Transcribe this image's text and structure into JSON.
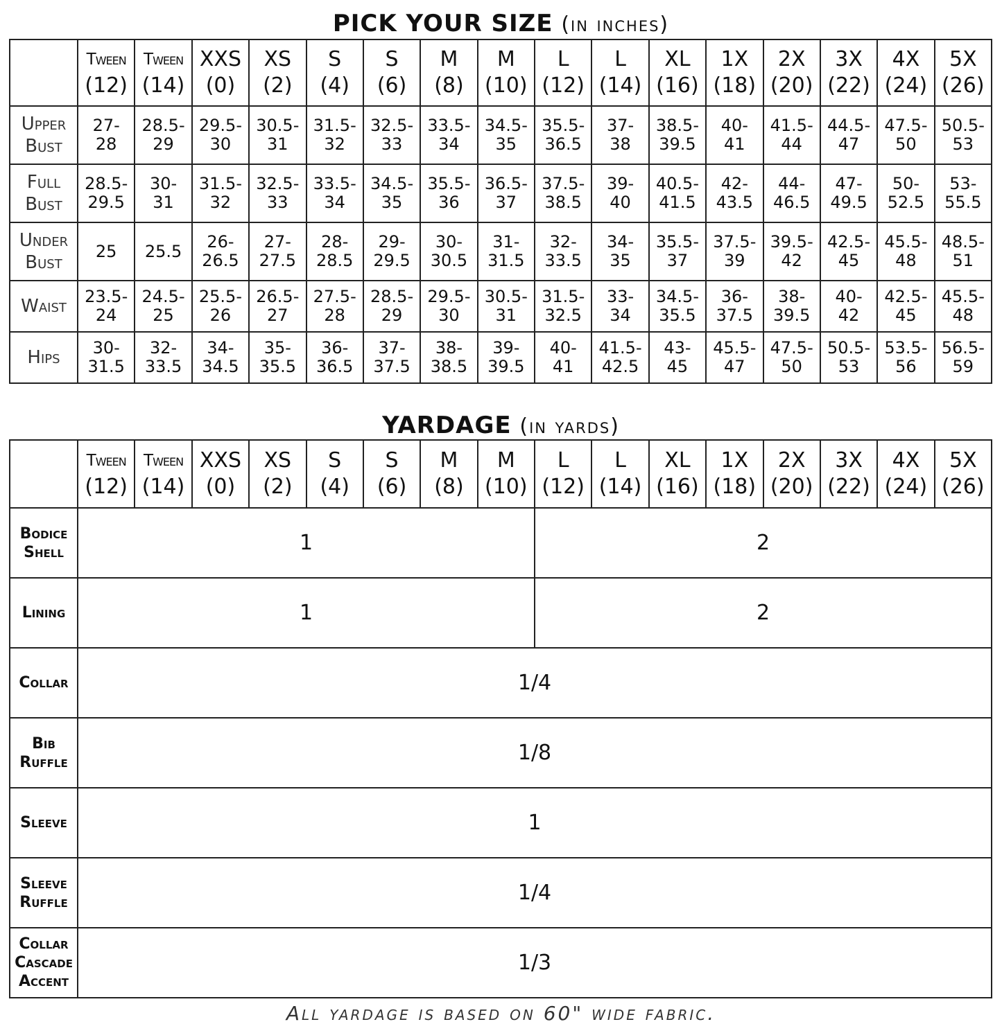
{
  "size_chart": {
    "title": "PICK YOUR SIZE",
    "subtitle": "(in inches)",
    "sizes": [
      {
        "name": "Tween",
        "num": "(12)"
      },
      {
        "name": "Tween",
        "num": "(14)"
      },
      {
        "name": "XXS",
        "num": "(0)"
      },
      {
        "name": "XS",
        "num": "(2)"
      },
      {
        "name": "S",
        "num": "(4)"
      },
      {
        "name": "S",
        "num": "(6)"
      },
      {
        "name": "M",
        "num": "(8)"
      },
      {
        "name": "M",
        "num": "(10)"
      },
      {
        "name": "L",
        "num": "(12)"
      },
      {
        "name": "L",
        "num": "(14)"
      },
      {
        "name": "XL",
        "num": "(16)"
      },
      {
        "name": "1X",
        "num": "(18)"
      },
      {
        "name": "2X",
        "num": "(20)"
      },
      {
        "name": "3X",
        "num": "(22)"
      },
      {
        "name": "4X",
        "num": "(24)"
      },
      {
        "name": "5X",
        "num": "(26)"
      }
    ],
    "rows": [
      {
        "label": [
          "Upper",
          "Bust"
        ],
        "values": [
          [
            "27-",
            "28"
          ],
          [
            "28.5-",
            "29"
          ],
          [
            "29.5-",
            "30"
          ],
          [
            "30.5-",
            "31"
          ],
          [
            "31.5-",
            "32"
          ],
          [
            "32.5-",
            "33"
          ],
          [
            "33.5-",
            "34"
          ],
          [
            "34.5-",
            "35"
          ],
          [
            "35.5-",
            "36.5"
          ],
          [
            "37-",
            "38"
          ],
          [
            "38.5-",
            "39.5"
          ],
          [
            "40-",
            "41"
          ],
          [
            "41.5-",
            "44"
          ],
          [
            "44.5-",
            "47"
          ],
          [
            "47.5-",
            "50"
          ],
          [
            "50.5-",
            "53"
          ]
        ]
      },
      {
        "label": [
          "Full",
          "Bust"
        ],
        "values": [
          [
            "28.5-",
            "29.5"
          ],
          [
            "30-",
            "31"
          ],
          [
            "31.5-",
            "32"
          ],
          [
            "32.5-",
            "33"
          ],
          [
            "33.5-",
            "34"
          ],
          [
            "34.5-",
            "35"
          ],
          [
            "35.5-",
            "36"
          ],
          [
            "36.5-",
            "37"
          ],
          [
            "37.5-",
            "38.5"
          ],
          [
            "39-",
            "40"
          ],
          [
            "40.5-",
            "41.5"
          ],
          [
            "42-",
            "43.5"
          ],
          [
            "44-",
            "46.5"
          ],
          [
            "47-",
            "49.5"
          ],
          [
            "50-",
            "52.5"
          ],
          [
            "53-",
            "55.5"
          ]
        ]
      },
      {
        "label": [
          "Under",
          "Bust"
        ],
        "values": [
          [
            "25"
          ],
          [
            "25.5"
          ],
          [
            "26-",
            "26.5"
          ],
          [
            "27-",
            "27.5"
          ],
          [
            "28-",
            "28.5"
          ],
          [
            "29-",
            "29.5"
          ],
          [
            "30-",
            "30.5"
          ],
          [
            "31-",
            "31.5"
          ],
          [
            "32-",
            "33.5"
          ],
          [
            "34-",
            "35"
          ],
          [
            "35.5-",
            "37"
          ],
          [
            "37.5-",
            "39"
          ],
          [
            "39.5-",
            "42"
          ],
          [
            "42.5-",
            "45"
          ],
          [
            "45.5-",
            "48"
          ],
          [
            "48.5-",
            "51"
          ]
        ]
      },
      {
        "label": [
          "Waist"
        ],
        "values": [
          [
            "23.5-",
            "24"
          ],
          [
            "24.5-",
            "25"
          ],
          [
            "25.5-",
            "26"
          ],
          [
            "26.5-",
            "27"
          ],
          [
            "27.5-",
            "28"
          ],
          [
            "28.5-",
            "29"
          ],
          [
            "29.5-",
            "30"
          ],
          [
            "30.5-",
            "31"
          ],
          [
            "31.5-",
            "32.5"
          ],
          [
            "33-",
            "34"
          ],
          [
            "34.5-",
            "35.5"
          ],
          [
            "36-",
            "37.5"
          ],
          [
            "38-",
            "39.5"
          ],
          [
            "40-",
            "42"
          ],
          [
            "42.5-",
            "45"
          ],
          [
            "45.5-",
            "48"
          ]
        ]
      },
      {
        "label": [
          "Hips"
        ],
        "values": [
          [
            "30-",
            "31.5"
          ],
          [
            "32-",
            "33.5"
          ],
          [
            "34-",
            "34.5"
          ],
          [
            "35-",
            "35.5"
          ],
          [
            "36-",
            "36.5"
          ],
          [
            "37-",
            "37.5"
          ],
          [
            "38-",
            "38.5"
          ],
          [
            "39-",
            "39.5"
          ],
          [
            "40-",
            "41"
          ],
          [
            "41.5-",
            "42.5"
          ],
          [
            "43-",
            "45"
          ],
          [
            "45.5-",
            "47"
          ],
          [
            "47.5-",
            "50"
          ],
          [
            "50.5-",
            "53"
          ],
          [
            "53.5-",
            "56"
          ],
          [
            "56.5-",
            "59"
          ]
        ]
      }
    ]
  },
  "yardage": {
    "title": "YARDAGE",
    "subtitle": "(in yards)",
    "rows": [
      {
        "label": [
          "Bodice",
          "Shell"
        ],
        "segments": [
          {
            "value": "1",
            "sizes_covered": 8
          },
          {
            "value": "2",
            "sizes_covered": 8
          }
        ]
      },
      {
        "label": [
          "Lining"
        ],
        "segments": [
          {
            "value": "1",
            "sizes_covered": 8
          },
          {
            "value": "2",
            "sizes_covered": 8
          }
        ]
      },
      {
        "label": [
          "Collar"
        ],
        "segments": [
          {
            "value": "1/4",
            "sizes_covered": 16
          }
        ]
      },
      {
        "label": [
          "Bib",
          "Ruffle"
        ],
        "segments": [
          {
            "value": "1/8",
            "sizes_covered": 16
          }
        ]
      },
      {
        "label": [
          "Sleeve"
        ],
        "segments": [
          {
            "value": "1",
            "sizes_covered": 16
          }
        ]
      },
      {
        "label": [
          "Sleeve",
          "Ruffle"
        ],
        "segments": [
          {
            "value": "1/4",
            "sizes_covered": 16
          }
        ]
      },
      {
        "label": [
          "Collar",
          "Cascade",
          "Accent"
        ],
        "segments": [
          {
            "value": "1/3",
            "sizes_covered": 16
          }
        ]
      }
    ],
    "footnote": "All yardage is based on 60\" wide fabric."
  }
}
